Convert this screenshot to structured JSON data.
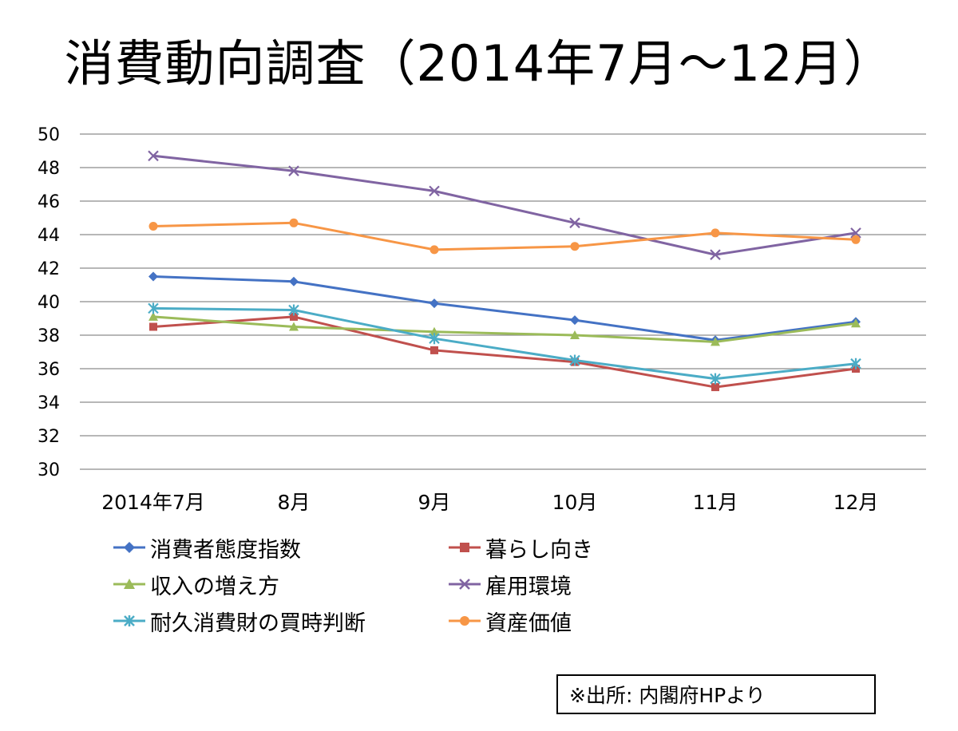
{
  "chart_data": {
    "type": "line",
    "title": "消費動向調査（2014年7月～12月）",
    "categories": [
      "2014年7月",
      "8月",
      "9月",
      "10月",
      "11月",
      "12月"
    ],
    "ylim": [
      30,
      50
    ],
    "yticks": [
      30,
      32,
      34,
      36,
      38,
      40,
      42,
      44,
      46,
      48,
      50
    ],
    "grid": true,
    "legend_position": "bottom",
    "series": [
      {
        "name": "消費者態度指数",
        "color": "#4472C4",
        "marker": "diamond",
        "values": [
          41.5,
          41.2,
          39.9,
          38.9,
          37.7,
          38.8
        ]
      },
      {
        "name": "暮らし向き",
        "color": "#C0504D",
        "marker": "square",
        "values": [
          38.5,
          39.1,
          37.1,
          36.4,
          34.9,
          36.0
        ]
      },
      {
        "name": "収入の増え方",
        "color": "#9BBB59",
        "marker": "triangle",
        "values": [
          39.1,
          38.5,
          38.2,
          38.0,
          37.6,
          38.7
        ]
      },
      {
        "name": "雇用環境",
        "color": "#8064A2",
        "marker": "x",
        "values": [
          48.7,
          47.8,
          46.6,
          44.7,
          42.8,
          44.1
        ]
      },
      {
        "name": "耐久消費財の買時判断",
        "color": "#4BACC6",
        "marker": "star",
        "values": [
          39.6,
          39.5,
          37.8,
          36.5,
          35.4,
          36.3
        ]
      },
      {
        "name": "資産価値",
        "color": "#F79646",
        "marker": "circle",
        "values": [
          44.5,
          44.7,
          43.1,
          43.3,
          44.1,
          43.7
        ]
      }
    ]
  },
  "source_note": "※出所: 内閣府HPより"
}
